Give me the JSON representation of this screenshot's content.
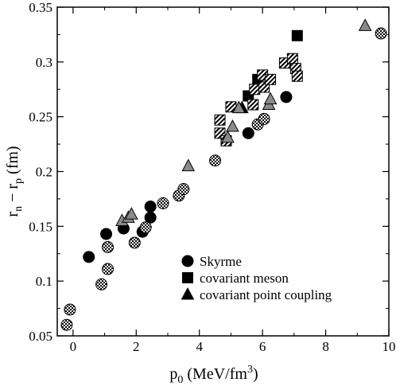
{
  "chart_data": {
    "type": "scatter",
    "xlabel": {
      "base": "p",
      "sub": "0",
      "text": " (MeV/fm",
      "sup": "3",
      "tail": ")"
    },
    "ylabel": {
      "t1": "r",
      "s1": "n",
      "t2": " − r",
      "s2": "p",
      "t3": " (fm)"
    },
    "xlim": [
      -0.5,
      10
    ],
    "ylim": [
      0.05,
      0.35
    ],
    "xticks": [
      "0",
      "2",
      "4",
      "6",
      "8",
      "10"
    ],
    "xtick_values": [
      0,
      2,
      4,
      6,
      8,
      10
    ],
    "yticks": [
      "0.05",
      "0.1",
      "0.15",
      "0.2",
      "0.25",
      "0.3",
      "0.35"
    ],
    "ytick_values": [
      0.05,
      0.1,
      0.15,
      0.2,
      0.25,
      0.3,
      0.35
    ],
    "grid": false,
    "legend_position": "lower-right",
    "colors": {
      "solid": "#000000",
      "gray": "#8a8a8a",
      "white": "#ffffff"
    },
    "legend": [
      {
        "label": "Skyrme",
        "shape": "circle"
      },
      {
        "label": "covariant meson",
        "shape": "square"
      },
      {
        "label": "covariant point coupling",
        "shape": "triangle"
      }
    ],
    "series": [
      {
        "name": "Skyrme",
        "shape": "circle",
        "points": [
          {
            "x": 0.5,
            "y": 0.122,
            "fill": "solid"
          },
          {
            "x": 1.05,
            "y": 0.143,
            "fill": "solid"
          },
          {
            "x": 1.6,
            "y": 0.148,
            "fill": "solid"
          },
          {
            "x": 2.2,
            "y": 0.145,
            "fill": "solid"
          },
          {
            "x": 2.45,
            "y": 0.168,
            "fill": "solid"
          },
          {
            "x": 2.45,
            "y": 0.158,
            "fill": "solid"
          },
          {
            "x": 5.55,
            "y": 0.235,
            "fill": "solid"
          },
          {
            "x": 6.75,
            "y": 0.268,
            "fill": "solid"
          },
          {
            "x": -0.2,
            "y": 0.06,
            "fill": "checker"
          },
          {
            "x": -0.1,
            "y": 0.074,
            "fill": "checker"
          },
          {
            "x": 0.9,
            "y": 0.097,
            "fill": "checker"
          },
          {
            "x": 1.1,
            "y": 0.111,
            "fill": "checker"
          },
          {
            "x": 1.1,
            "y": 0.131,
            "fill": "checker"
          },
          {
            "x": 1.95,
            "y": 0.135,
            "fill": "checker"
          },
          {
            "x": 2.3,
            "y": 0.149,
            "fill": "checker"
          },
          {
            "x": 2.85,
            "y": 0.171,
            "fill": "checker"
          },
          {
            "x": 3.35,
            "y": 0.178,
            "fill": "checker"
          },
          {
            "x": 3.5,
            "y": 0.184,
            "fill": "checker"
          },
          {
            "x": 4.5,
            "y": 0.21,
            "fill": "checker"
          },
          {
            "x": 5.85,
            "y": 0.243,
            "fill": "checker"
          },
          {
            "x": 6.05,
            "y": 0.248,
            "fill": "checker"
          },
          {
            "x": 9.75,
            "y": 0.326,
            "fill": "checker"
          }
        ]
      },
      {
        "name": "covariant meson",
        "shape": "square",
        "points": [
          {
            "x": 5.55,
            "y": 0.269,
            "fill": "solid"
          },
          {
            "x": 5.85,
            "y": 0.284,
            "fill": "solid"
          },
          {
            "x": 7.1,
            "y": 0.324,
            "fill": "solid"
          },
          {
            "x": 4.65,
            "y": 0.247,
            "fill": "stripe"
          },
          {
            "x": 4.65,
            "y": 0.235,
            "fill": "stripe"
          },
          {
            "x": 4.85,
            "y": 0.228,
            "fill": "stripe"
          },
          {
            "x": 5.0,
            "y": 0.259,
            "fill": "stripe"
          },
          {
            "x": 5.7,
            "y": 0.261,
            "fill": "stripe"
          },
          {
            "x": 5.75,
            "y": 0.275,
            "fill": "stripe"
          },
          {
            "x": 6.0,
            "y": 0.288,
            "fill": "stripe"
          },
          {
            "x": 6.05,
            "y": 0.277,
            "fill": "stripe"
          },
          {
            "x": 6.25,
            "y": 0.284,
            "fill": "stripe"
          },
          {
            "x": 6.7,
            "y": 0.299,
            "fill": "stripe"
          },
          {
            "x": 6.95,
            "y": 0.303,
            "fill": "stripe"
          },
          {
            "x": 7.05,
            "y": 0.294,
            "fill": "stripe"
          },
          {
            "x": 7.1,
            "y": 0.287,
            "fill": "stripe"
          }
        ]
      },
      {
        "name": "covariant point coupling",
        "shape": "triangle",
        "points": [
          {
            "x": 5.35,
            "y": 0.258,
            "fill": "solid"
          },
          {
            "x": 1.55,
            "y": 0.155,
            "fill": "gray"
          },
          {
            "x": 1.75,
            "y": 0.158,
            "fill": "gray"
          },
          {
            "x": 1.85,
            "y": 0.161,
            "fill": "gray"
          },
          {
            "x": 3.65,
            "y": 0.205,
            "fill": "gray"
          },
          {
            "x": 4.9,
            "y": 0.231,
            "fill": "gray"
          },
          {
            "x": 5.05,
            "y": 0.241,
            "fill": "gray"
          },
          {
            "x": 5.25,
            "y": 0.258,
            "fill": "gray"
          },
          {
            "x": 6.2,
            "y": 0.261,
            "fill": "gray"
          },
          {
            "x": 6.25,
            "y": 0.266,
            "fill": "gray"
          },
          {
            "x": 9.25,
            "y": 0.333,
            "fill": "gray"
          }
        ]
      }
    ]
  }
}
